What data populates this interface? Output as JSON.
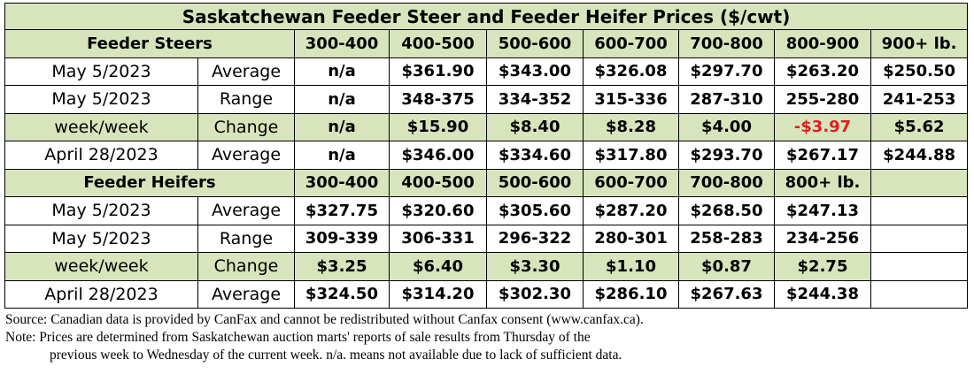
{
  "chart_data": {
    "type": "table",
    "title": "Saskatchewan Feeder Steer and Feeder Heifer Prices ($/cwt)",
    "sections": [
      {
        "name": "Feeder Steers",
        "columns": [
          "300-400",
          "400-500",
          "500-600",
          "600-700",
          "700-800",
          "800-900",
          "900+ lb."
        ],
        "rows": [
          {
            "date": "May 5/2023",
            "metric": "Average",
            "values": [
              "n/a",
              "$361.90",
              "$343.00",
              "$326.08",
              "$297.70",
              "$263.20",
              "$250.50"
            ]
          },
          {
            "date": "May 5/2023",
            "metric": "Range",
            "values": [
              "n/a",
              "348-375",
              "334-352",
              "315-336",
              "287-310",
              "255-280",
              "241-253"
            ]
          },
          {
            "date": "week/week",
            "metric": "Change",
            "values": [
              "n/a",
              "$15.90",
              "$8.40",
              "$8.28",
              "$4.00",
              "-$3.97",
              "$5.62"
            ]
          },
          {
            "date": "April 28/2023",
            "metric": "Average",
            "values": [
              "n/a",
              "$346.00",
              "$334.60",
              "$317.80",
              "$293.70",
              "$267.17",
              "$244.88"
            ]
          }
        ]
      },
      {
        "name": "Feeder Heifers",
        "columns": [
          "300-400",
          "400-500",
          "500-600",
          "600-700",
          "700-800",
          "800+ lb.",
          ""
        ],
        "rows": [
          {
            "date": "May 5/2023",
            "metric": "Average",
            "values": [
              "$327.75",
              "$320.60",
              "$305.60",
              "$287.20",
              "$268.50",
              "$247.13",
              ""
            ]
          },
          {
            "date": "May 5/2023",
            "metric": "Range",
            "values": [
              "309-339",
              "306-331",
              "296-322",
              "280-301",
              "258-283",
              "234-256",
              ""
            ]
          },
          {
            "date": "week/week",
            "metric": "Change",
            "values": [
              "$3.25",
              "$6.40",
              "$3.30",
              "$1.10",
              "$0.87",
              "$2.75",
              ""
            ]
          },
          {
            "date": "April 28/2023",
            "metric": "Average",
            "values": [
              "$324.50",
              "$314.20",
              "$302.30",
              "$286.10",
              "$267.63",
              "$244.38",
              ""
            ]
          }
        ]
      }
    ],
    "colors": {
      "header_fill": "#d8e4bc",
      "negative": "#e21d1d"
    }
  },
  "notes": {
    "source": "Source: Canadian data is provided by CanFax and cannot be redistributed without Canfax consent (www.canfax.ca).",
    "note_line1": "Note: Prices are determined from Saskatchewan auction marts' reports of sale results from Thursday of the",
    "note_line2": "previous week to Wednesday of the current week. n/a. means not available due to lack of sufficient data."
  }
}
